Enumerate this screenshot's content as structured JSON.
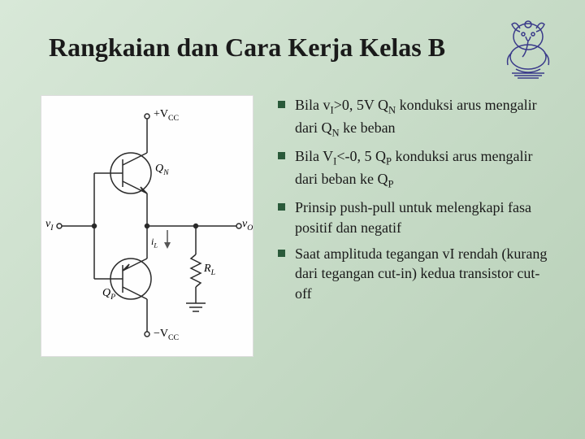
{
  "title": "Rangkaian dan Cara Kerja Kelas B",
  "logo": {
    "stroke": "#3a3a8a",
    "fill": "none"
  },
  "circuit": {
    "background": "#fefefe",
    "labels": {
      "vcc_top": "+V",
      "vcc_top_sub": "CC",
      "vcc_bot": "−V",
      "vcc_bot_sub": "CC",
      "qn": "Q",
      "qn_sub": "N",
      "qp": "Q",
      "qp_sub": "P",
      "vi": "v",
      "vi_sub": "I",
      "vo": "v",
      "vo_sub": "O",
      "il": "i",
      "il_sub": "L",
      "rl": "R",
      "rl_sub": "L"
    },
    "stroke": "#2a2a2a",
    "stroke_width": 1.5
  },
  "bullets": [
    {
      "html": "Bila v<sub>I</sub>>0, 5V Q<sub>N</sub> konduksi arus mengalir dari Q<sub>N</sub> ke beban"
    },
    {
      "html": "Bila V<sub>I</sub><-0, 5 Q<sub>P</sub> konduksi arus mengalir dari beban ke Q<sub>P</sub>"
    },
    {
      "html": "Prinsip push-pull untuk melengkapi fasa positif dan negatif"
    },
    {
      "html": "Saat  amplituda tegangan vI rendah (kurang dari tegangan cut-in) kedua transistor cut-off"
    }
  ],
  "colors": {
    "bullet_marker": "#2a5a3a",
    "text": "#1a1a1a"
  }
}
